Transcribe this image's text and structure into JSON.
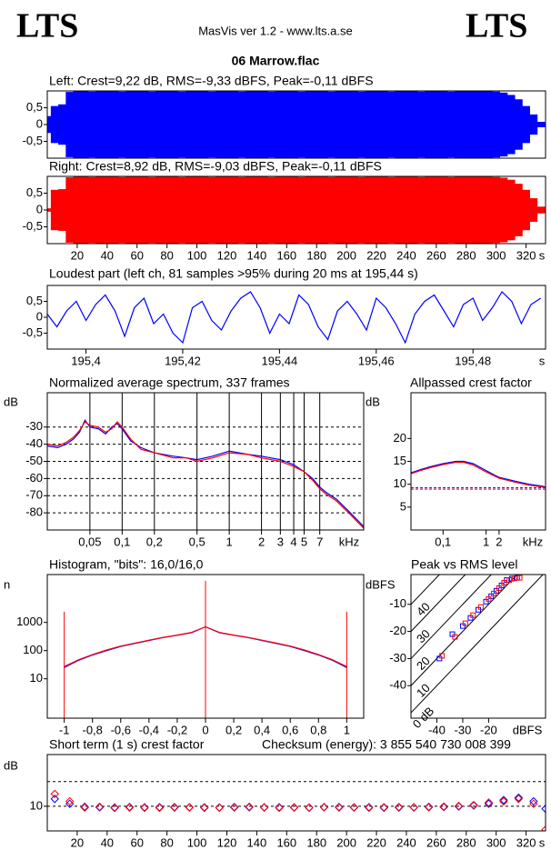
{
  "header": {
    "logo_left": "LTS",
    "logo_right": "LTS",
    "app": "MasVis ver 1.2 - www.lts.a.se",
    "file": "06 Marrow.flac"
  },
  "chart_data": [
    {
      "type": "waveform",
      "title": "Left: Crest=9,22 dB, RMS=-9,33 dBFS, Peak=-0,11 dBFS",
      "xlim": [
        0,
        333
      ],
      "ylim": [
        -1,
        1
      ],
      "yticks": [
        {
          "value": 0.5,
          "label": "0,5"
        },
        0,
        {
          "value": -0.5,
          "label": "-0,5"
        }
      ],
      "x": [
        0,
        5,
        10,
        15,
        20,
        25,
        30,
        35,
        40,
        45,
        50,
        55,
        60,
        65,
        70,
        75,
        80,
        85,
        90,
        95,
        100,
        105,
        110,
        115,
        120,
        125,
        130,
        135,
        140,
        145,
        150,
        155,
        160,
        165,
        170,
        175,
        180,
        185,
        190,
        195,
        200,
        205,
        210,
        215,
        220,
        225,
        230,
        235,
        240,
        245,
        250,
        255,
        260,
        265,
        270,
        275,
        280,
        285,
        290,
        295,
        300,
        305,
        310,
        315,
        320,
        325,
        330
      ],
      "series": [
        {
          "color": "#0000ff",
          "values": [
            0.25,
            0.55,
            0.6,
            0.97,
            0.99,
            1,
            0.98,
            1,
            0.99,
            1,
            0.98,
            1,
            0.99,
            1,
            0.98,
            1,
            0.99,
            1,
            0.98,
            1,
            0.99,
            1,
            0.98,
            1,
            0.99,
            1,
            0.98,
            1,
            0.99,
            1,
            0.98,
            1,
            0.99,
            1,
            0.98,
            1,
            0.99,
            1,
            0.98,
            1,
            0.99,
            1,
            0.98,
            1,
            0.99,
            1,
            0.98,
            1,
            0.99,
            1,
            0.98,
            1,
            0.99,
            1,
            0.98,
            1,
            1,
            1,
            0.99,
            1,
            0.98,
            0.95,
            0.88,
            0.75,
            0.55,
            0.3,
            0.08
          ]
        }
      ]
    },
    {
      "type": "waveform",
      "title": "Right: Crest=8,92 dB, RMS=-9,03 dBFS, Peak=-0,11 dBFS",
      "xlim": [
        0,
        333
      ],
      "ylim": [
        -1,
        1
      ],
      "xlabel": "s",
      "yticks": [
        {
          "value": 0.5,
          "label": "0,5"
        },
        0,
        {
          "value": -0.5,
          "label": "-0,5"
        }
      ],
      "xticks": [
        20,
        40,
        60,
        80,
        100,
        120,
        140,
        160,
        180,
        200,
        220,
        240,
        260,
        280,
        300,
        320
      ],
      "x": [
        0,
        5,
        10,
        15,
        20,
        25,
        30,
        35,
        40,
        45,
        50,
        55,
        60,
        65,
        70,
        75,
        80,
        85,
        90,
        95,
        100,
        105,
        110,
        115,
        120,
        125,
        130,
        135,
        140,
        145,
        150,
        155,
        160,
        165,
        170,
        175,
        180,
        185,
        190,
        195,
        200,
        205,
        210,
        215,
        220,
        225,
        230,
        235,
        240,
        245,
        250,
        255,
        260,
        265,
        270,
        275,
        280,
        285,
        290,
        295,
        300,
        305,
        310,
        315,
        320,
        325,
        330
      ],
      "series": [
        {
          "color": "#ff0000",
          "values": [
            0.05,
            0.6,
            0.62,
            0.97,
            0.99,
            1,
            0.98,
            1,
            0.99,
            1,
            0.98,
            1,
            0.99,
            1,
            0.98,
            1,
            0.99,
            1,
            0.98,
            1,
            0.99,
            1,
            0.98,
            1,
            0.99,
            1,
            0.98,
            1,
            0.99,
            1,
            0.98,
            1,
            0.99,
            1,
            0.98,
            1,
            0.99,
            1,
            0.98,
            1,
            0.99,
            1,
            0.98,
            1,
            0.99,
            1,
            0.98,
            1,
            0.99,
            1,
            0.98,
            1,
            0.99,
            1,
            0.98,
            1,
            1,
            1,
            0.99,
            1,
            0.98,
            0.96,
            0.9,
            0.78,
            0.6,
            0.35,
            0.1
          ]
        }
      ]
    },
    {
      "type": "line",
      "title": "Loudest part (left  ch, 81 samples >95% during 20 ms at 195,44 s)",
      "xlim": [
        195.392,
        195.495
      ],
      "ylim": [
        -1,
        1
      ],
      "xlabel": "s",
      "yticks": [
        {
          "value": 0.5,
          "label": "0,5"
        },
        0,
        {
          "value": -0.5,
          "label": "-0,5"
        }
      ],
      "xticks": [
        {
          "value": 195.4,
          "label": "195,4"
        },
        {
          "value": 195.42,
          "label": "195,42"
        },
        {
          "value": 195.44,
          "label": "195,44"
        },
        {
          "value": 195.46,
          "label": "195,46"
        },
        {
          "value": 195.48,
          "label": "195,48"
        }
      ],
      "x": [
        195.392,
        195.394,
        195.396,
        195.398,
        195.4,
        195.402,
        195.404,
        195.406,
        195.408,
        195.41,
        195.412,
        195.414,
        195.416,
        195.418,
        195.42,
        195.422,
        195.424,
        195.426,
        195.428,
        195.43,
        195.432,
        195.434,
        195.436,
        195.438,
        195.44,
        195.442,
        195.444,
        195.446,
        195.448,
        195.45,
        195.452,
        195.454,
        195.456,
        195.458,
        195.46,
        195.462,
        195.464,
        195.466,
        195.468,
        195.47,
        195.472,
        195.474,
        195.476,
        195.478,
        195.48,
        195.482,
        195.484,
        195.486,
        195.488,
        195.49,
        195.492,
        195.494
      ],
      "series": [
        {
          "color": "#0000ff",
          "values": [
            0.1,
            -0.3,
            0.2,
            0.5,
            -0.1,
            0.4,
            0.7,
            0.2,
            -0.6,
            0.3,
            0.6,
            -0.2,
            0.1,
            -0.5,
            -0.8,
            0.3,
            0.5,
            -0.1,
            -0.4,
            0.2,
            0.6,
            0.8,
            0.3,
            -0.5,
            0.1,
            -0.2,
            0.7,
            0.4,
            -0.3,
            -0.7,
            0.2,
            0.5,
            0.1,
            -0.4,
            0.6,
            0.3,
            -0.2,
            -0.8,
            0.1,
            0.5,
            0.7,
            0.2,
            -0.3,
            0.4,
            0.6,
            -0.1,
            0.3,
            0.8,
            0.5,
            -0.2,
            0.4,
            0.6
          ]
        }
      ]
    },
    {
      "type": "line",
      "title": "Normalized average spectrum, 337 frames",
      "ylabel": "dB",
      "xlabel": "kHz",
      "log_x": true,
      "grid": true,
      "xlim": [
        0.02,
        18
      ],
      "ylim": [
        -90,
        -10
      ],
      "yticks": [
        -30,
        -40,
        -50,
        -60,
        -70,
        -80
      ],
      "xticks": [
        {
          "value": 0.05,
          "label": "0,05"
        },
        {
          "value": 0.1,
          "label": "0,1"
        },
        {
          "value": 0.2,
          "label": "0,2"
        },
        {
          "value": 0.5,
          "label": "0,5"
        },
        1,
        2,
        3,
        4,
        5,
        7
      ],
      "x": [
        0.02,
        0.025,
        0.03,
        0.035,
        0.04,
        0.045,
        0.05,
        0.06,
        0.07,
        0.08,
        0.09,
        0.1,
        0.12,
        0.15,
        0.2,
        0.3,
        0.4,
        0.5,
        0.7,
        1,
        1.5,
        2,
        3,
        4,
        5,
        6,
        7,
        8,
        10,
        13,
        18
      ],
      "series": [
        {
          "color": "#0000ff",
          "values": [
            -41,
            -42,
            -40,
            -37,
            -33,
            -26,
            -30,
            -31,
            -34,
            -30,
            -28,
            -31,
            -38,
            -42,
            -45,
            -47,
            -48,
            -49,
            -47,
            -44,
            -46,
            -47,
            -49,
            -52,
            -56,
            -60,
            -65,
            -68,
            -72,
            -79,
            -88
          ]
        },
        {
          "color": "#ff0000",
          "values": [
            -40,
            -41,
            -39,
            -36,
            -32,
            -27,
            -29,
            -30,
            -33,
            -31,
            -27,
            -30,
            -37,
            -43,
            -45,
            -48,
            -48,
            -50,
            -48,
            -45,
            -46,
            -48,
            -50,
            -53,
            -56,
            -61,
            -66,
            -69,
            -73,
            -80,
            -89
          ]
        }
      ]
    },
    {
      "type": "line",
      "title": "Allpassed crest factor",
      "ylabel": "dB",
      "xlabel": "kHz",
      "log_x": true,
      "xlim": [
        0.018,
        24
      ],
      "ylim": [
        0,
        30
      ],
      "yticks": [
        20,
        15,
        10,
        5
      ],
      "xticks": [
        {
          "value": 0.1,
          "label": "0,1"
        },
        1,
        2
      ],
      "hlines": [
        {
          "value": 9.22,
          "color": "#0000ff"
        },
        {
          "value": 8.92,
          "color": "#ff0000"
        }
      ],
      "x": [
        0.018,
        0.03,
        0.05,
        0.1,
        0.2,
        0.3,
        0.5,
        1,
        2,
        5,
        10,
        20,
        24
      ],
      "series": [
        {
          "color": "#0000ff",
          "values": [
            12.5,
            13.2,
            13.8,
            14.5,
            15,
            15,
            14.5,
            13,
            11.5,
            10.6,
            10,
            9.6,
            9.4
          ]
        },
        {
          "color": "#ff0000",
          "values": [
            12.3,
            13,
            13.6,
            14.3,
            14.8,
            14.8,
            14.2,
            12.7,
            11.3,
            10.4,
            9.8,
            9.4,
            9.2
          ]
        }
      ]
    },
    {
      "type": "line",
      "title": "Histogram, \"bits\": 16,0/16,0",
      "ylabel": "n",
      "log_y": true,
      "xlim": [
        -1.12,
        1.12
      ],
      "ylim": [
        0.4,
        50000
      ],
      "yticks": [
        1000,
        100,
        10
      ],
      "xticks": [
        -1,
        {
          "value": -0.8,
          "label": "-0,8"
        },
        {
          "value": -0.6,
          "label": "-0,6"
        },
        {
          "value": -0.4,
          "label": "-0,4"
        },
        {
          "value": -0.2,
          "label": "-0,2"
        },
        0,
        {
          "value": 0.2,
          "label": "0,2"
        },
        {
          "value": 0.4,
          "label": "0,4"
        },
        {
          "value": 0.6,
          "label": "0,6"
        },
        {
          "value": 0.8,
          "label": "0,8"
        },
        1
      ],
      "spikes": {
        "color": "#ff0000",
        "x": [
          -1,
          0,
          1
        ],
        "values": [
          2400,
          30000,
          2400
        ]
      },
      "x": [
        -1,
        -0.9,
        -0.8,
        -0.7,
        -0.6,
        -0.5,
        -0.4,
        -0.3,
        -0.2,
        -0.1,
        0,
        0.1,
        0.2,
        0.3,
        0.4,
        0.5,
        0.6,
        0.7,
        0.8,
        0.9,
        1
      ],
      "series": [
        {
          "color": "#0000ff",
          "values": [
            25,
            45,
            70,
            100,
            140,
            180,
            230,
            290,
            350,
            430,
            700,
            430,
            350,
            290,
            230,
            180,
            140,
            100,
            70,
            45,
            25
          ]
        },
        {
          "color": "#ff0000",
          "values": [
            27,
            47,
            72,
            105,
            145,
            185,
            235,
            295,
            355,
            440,
            700,
            440,
            355,
            295,
            235,
            185,
            145,
            105,
            72,
            47,
            27
          ]
        }
      ]
    },
    {
      "type": "scatter",
      "marker": "square",
      "title": "Peak vs RMS level",
      "ylabel": "dBFS",
      "xlabel": "dBFS",
      "xlim": [
        -50,
        2
      ],
      "ylim": [
        -52,
        1
      ],
      "yticks": [
        -10,
        -20,
        -30,
        -40
      ],
      "xticks": [
        -40,
        -30,
        -20
      ],
      "crest_lines": [
        40,
        30,
        20,
        10,
        {
          "value": 0,
          "label": "0 dB"
        }
      ],
      "series": [
        {
          "color": "#0000ff",
          "x": [
            -39,
            -34,
            -30,
            -27,
            -24,
            -21,
            -19,
            -17,
            -15,
            -13,
            -11,
            -9
          ],
          "values": [
            -30,
            -21,
            -18,
            -15,
            -12,
            -9,
            -7,
            -5,
            -3,
            -1,
            -0.5,
            -0.2
          ]
        },
        {
          "color": "#ff0000",
          "x": [
            -38,
            -33,
            -29,
            -26,
            -23,
            -20,
            -18,
            -16,
            -14,
            -12,
            -10,
            -8
          ],
          "values": [
            -29,
            -22,
            -17,
            -14,
            -11,
            -8,
            -6,
            -4,
            -2,
            -1,
            -0.4,
            -0.2
          ]
        }
      ]
    },
    {
      "type": "scatter",
      "marker": "diamond",
      "title": "Short term (1 s) crest factor",
      "annotation": "Checksum (energy):  3 855 540 730 008 399",
      "ylabel": "dB",
      "xlabel": "s",
      "xlim": [
        0,
        333
      ],
      "ylim": [
        0,
        31
      ],
      "yticks": [
        10
      ],
      "dashed_lines": [
        10,
        20
      ],
      "xticks": [
        20,
        40,
        60,
        80,
        100,
        120,
        140,
        160,
        180,
        200,
        220,
        240,
        260,
        280,
        300,
        320
      ],
      "x": [
        5,
        15,
        25,
        35,
        45,
        55,
        65,
        75,
        85,
        95,
        105,
        115,
        125,
        135,
        145,
        155,
        165,
        175,
        185,
        195,
        205,
        215,
        225,
        235,
        245,
        255,
        265,
        275,
        285,
        295,
        305,
        315,
        325,
        333
      ],
      "series": [
        {
          "color": "#0000ff",
          "values": [
            13,
            11,
            9.8,
            9.6,
            9.5,
            9.7,
            9.4,
            9.6,
            9.5,
            9.6,
            9.4,
            9.5,
            9.7,
            9.6,
            9.5,
            9.6,
            9.5,
            9.4,
            9.6,
            9.7,
            9.5,
            9.6,
            9.4,
            9.5,
            9.6,
            9.8,
            9.7,
            9.9,
            10.3,
            11,
            12.5,
            13.5,
            12,
            9
          ]
        },
        {
          "color": "#ff0000",
          "values": [
            15,
            12,
            9.5,
            9.8,
            9.3,
            9.5,
            9.6,
            9.4,
            9.7,
            9.5,
            9.6,
            9.4,
            9.5,
            9.8,
            9.6,
            9.4,
            9.6,
            9.5,
            9.7,
            9.5,
            9.6,
            9.4,
            9.6,
            9.7,
            9.5,
            9.6,
            9.9,
            10.1,
            10.5,
            11.5,
            12,
            13,
            11,
            0.5
          ]
        }
      ]
    }
  ]
}
